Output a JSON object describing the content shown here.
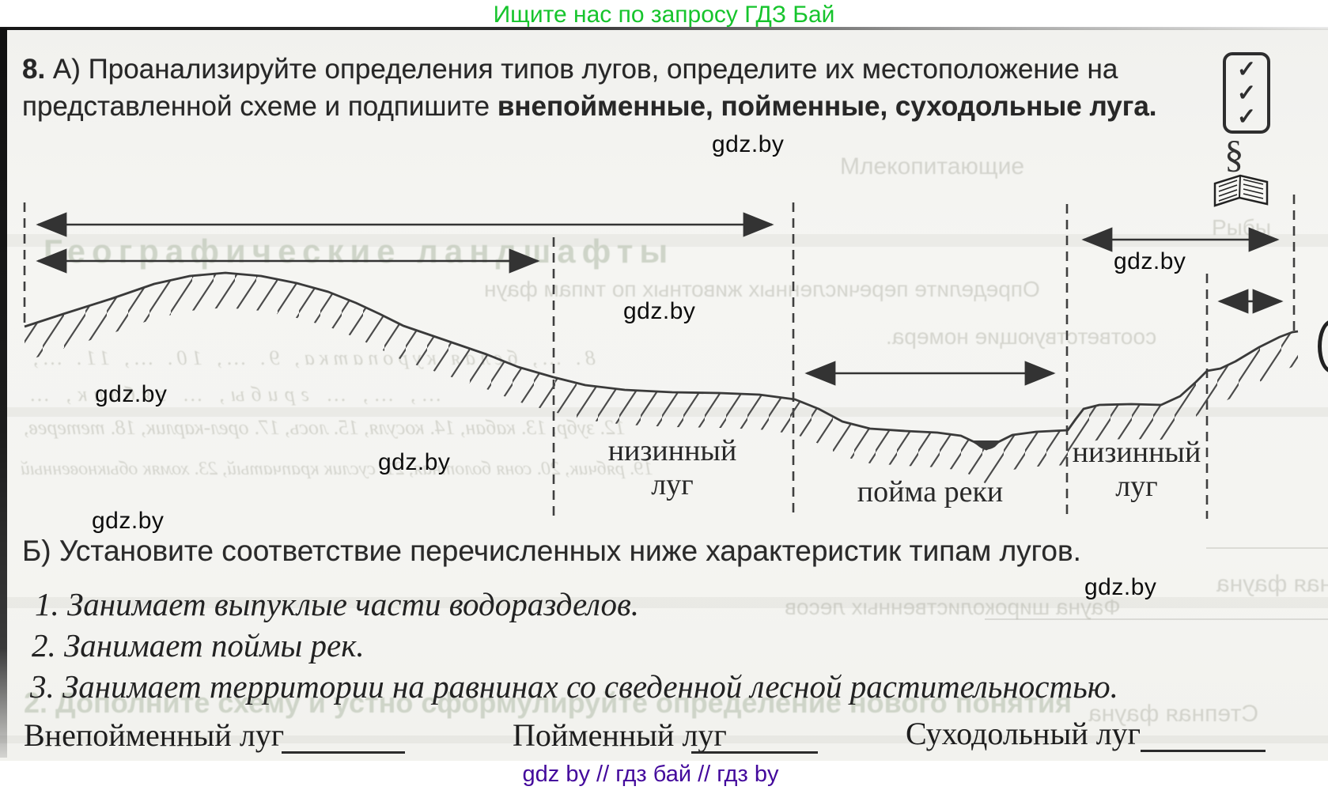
{
  "promo": {
    "text": "Ищите нас по запросу ГДЗ Бай",
    "color": "#16c42c"
  },
  "watermark": {
    "text": "gdz.by"
  },
  "task": {
    "number": "8.",
    "prefix": " А) Проанализируйте определения типов лугов, определите их местоположение на представленной схеме и подпишите ",
    "bold": "внепойменные, пойменные, суходольные луга",
    "suffix": "."
  },
  "margin": {
    "checks": "✓✓✓",
    "section": "§"
  },
  "diagram": {
    "left_label": {
      "line1": "низинный",
      "line2": "луг"
    },
    "floodplain": "пойма реки",
    "right_label": {
      "line1": "низинный",
      "line2": "луг"
    }
  },
  "part_b": {
    "heading": "Б) Установите соответствие перечисленных ниже характеристик типам лугов.",
    "items": [
      "1. Занимает выпуклые части водоразделов.",
      "2. Занимает поймы рек.",
      "3. Занимает территории на равнинах со сведенной лесной растительностью."
    ]
  },
  "answers": [
    {
      "label": "Внепойменный луг"
    },
    {
      "label": "Пойменный луг"
    },
    {
      "label": "Суходольный луг"
    }
  ],
  "footer": {
    "text": "gdz by  //  гдз бай  //  гдз by",
    "color": "#43099c"
  },
  "bleed": [
    {
      "text": "Млекопитающие"
    },
    {
      "text": "Рыбы"
    },
    {
      "text": "Географические ландшафты"
    },
    {
      "text": "Определите перечисленных животных по типам фаун"
    },
    {
      "text": "соответствующие номера."
    },
    {
      "text": "8. …, белая куропатка, 9. …, 10. …, 11. …,"
    },
    {
      "text": "…, …, … грибы, … зяблик, …"
    },
    {
      "text": "12. зубр, 13. кабан, 14. косуля, 15. лось, 17. орел-карлик, 18. тетерев,"
    },
    {
      "text": "19. рябчик, 20. соня болотная, 21. суслик крапчатый, 23. хомяк обыкновенный"
    },
    {
      "text": "Таёжная фауна"
    },
    {
      "text": "Фауна широколиственных лесов"
    },
    {
      "text": "Степная фауна"
    },
    {
      "text": "2. Дополните схему и устно сформулируйте определение нового понятия"
    }
  ]
}
